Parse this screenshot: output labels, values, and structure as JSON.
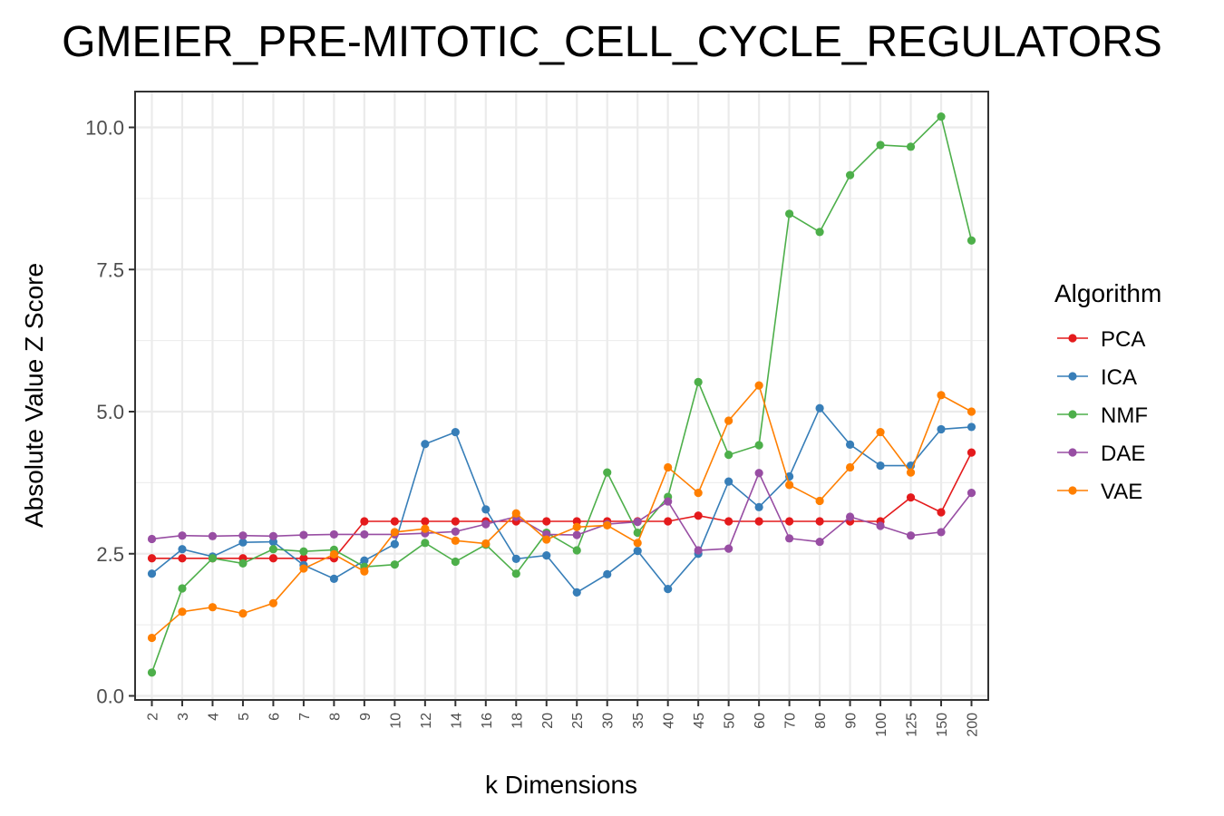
{
  "chart_data": {
    "type": "line",
    "title": "GMEIER_PRE-MITOTIC_CELL_CYCLE_REGULATORS",
    "xlabel": "k Dimensions",
    "ylabel": "Absolute Value Z Score",
    "ylim": [
      0,
      10.5
    ],
    "yticks": [
      "0.0",
      "2.5",
      "5.0",
      "7.5",
      "10.0"
    ],
    "ytick_values": [
      0,
      2.5,
      5.0,
      7.5,
      10.0
    ],
    "categories": [
      "2",
      "3",
      "4",
      "5",
      "6",
      "7",
      "8",
      "9",
      "10",
      "12",
      "14",
      "16",
      "18",
      "20",
      "25",
      "30",
      "35",
      "40",
      "45",
      "50",
      "60",
      "70",
      "80",
      "90",
      "100",
      "125",
      "150",
      "200"
    ],
    "grid": true,
    "legend": {
      "title": "Algorithm",
      "position": "right"
    },
    "series": [
      {
        "name": "PCA",
        "color": "#E41A1C",
        "values": [
          2.42,
          2.42,
          2.42,
          2.42,
          2.42,
          2.42,
          2.42,
          3.07,
          3.07,
          3.07,
          3.07,
          3.07,
          3.07,
          3.07,
          3.07,
          3.07,
          3.07,
          3.07,
          3.17,
          3.07,
          3.07,
          3.07,
          3.07,
          3.07,
          3.07,
          3.49,
          3.23,
          4.28
        ]
      },
      {
        "name": "ICA",
        "color": "#377EB8",
        "values": [
          2.15,
          2.58,
          2.45,
          2.7,
          2.71,
          2.3,
          2.06,
          2.38,
          2.67,
          4.43,
          4.64,
          3.28,
          2.41,
          2.47,
          1.82,
          2.14,
          2.55,
          1.88,
          2.5,
          3.77,
          3.32,
          3.86,
          5.06,
          4.42,
          4.05,
          4.05,
          4.69,
          4.73
        ]
      },
      {
        "name": "NMF",
        "color": "#4DAF4A",
        "values": [
          0.41,
          1.89,
          2.42,
          2.33,
          2.58,
          2.54,
          2.57,
          2.27,
          2.31,
          2.69,
          2.36,
          2.66,
          2.15,
          2.87,
          2.56,
          3.93,
          2.87,
          3.5,
          5.52,
          4.24,
          4.41,
          8.48,
          8.16,
          9.16,
          9.69,
          9.66,
          10.19,
          8.01
        ]
      },
      {
        "name": "DAE",
        "color": "#984EA3",
        "values": [
          2.76,
          2.82,
          2.81,
          2.82,
          2.81,
          2.83,
          2.84,
          2.84,
          2.84,
          2.86,
          2.89,
          3.02,
          3.15,
          2.84,
          2.83,
          3.02,
          3.06,
          3.42,
          2.56,
          2.59,
          3.92,
          2.77,
          2.71,
          3.15,
          2.99,
          2.82,
          2.88,
          3.57
        ]
      },
      {
        "name": "VAE",
        "color": "#FF7F00",
        "values": [
          1.02,
          1.48,
          1.56,
          1.45,
          1.63,
          2.24,
          2.49,
          2.19,
          2.88,
          2.94,
          2.73,
          2.68,
          3.21,
          2.75,
          2.97,
          3.0,
          2.69,
          4.02,
          3.57,
          4.84,
          5.46,
          3.71,
          3.43,
          4.02,
          4.64,
          3.93,
          5.29,
          5.0
        ]
      }
    ]
  }
}
